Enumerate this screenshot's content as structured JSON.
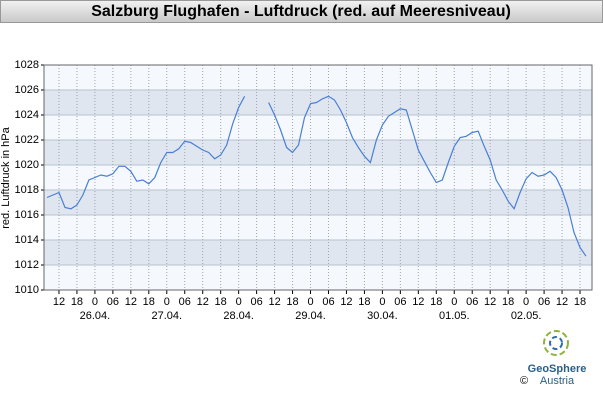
{
  "chart_data": {
    "type": "line",
    "title": "Salzburg Flughafen - Luftdruck (red. auf Meeresniveau)",
    "y_label": "red. Luftdruck in hPa",
    "logo_text": "GeoSphere",
    "logo_subtext": "Austria",
    "copyright": "©",
    "color": "#4a7fd6",
    "grid": true,
    "ylim": [
      1010,
      1028
    ],
    "yticks": [
      1010,
      1012,
      1014,
      1016,
      1018,
      1020,
      1022,
      1024,
      1026,
      1028
    ],
    "xlim": [
      -17,
      166
    ],
    "xticks": [
      {
        "value": -12,
        "label": "12"
      },
      {
        "value": -6,
        "label": "18"
      },
      {
        "value": 0,
        "label": "0"
      },
      {
        "value": 6,
        "label": "06"
      },
      {
        "value": 12,
        "label": "12"
      },
      {
        "value": 18,
        "label": "18"
      },
      {
        "value": 24,
        "label": "0"
      },
      {
        "value": 30,
        "label": "06"
      },
      {
        "value": 36,
        "label": "12"
      },
      {
        "value": 42,
        "label": "18"
      },
      {
        "value": 48,
        "label": "0"
      },
      {
        "value": 54,
        "label": "06"
      },
      {
        "value": 60,
        "label": "12"
      },
      {
        "value": 66,
        "label": "18"
      },
      {
        "value": 72,
        "label": "0"
      },
      {
        "value": 78,
        "label": "06"
      },
      {
        "value": 84,
        "label": "12"
      },
      {
        "value": 90,
        "label": "18"
      },
      {
        "value": 96,
        "label": "0"
      },
      {
        "value": 102,
        "label": "06"
      },
      {
        "value": 108,
        "label": "12"
      },
      {
        "value": 114,
        "label": "18"
      },
      {
        "value": 120,
        "label": "0"
      },
      {
        "value": 126,
        "label": "06"
      },
      {
        "value": 132,
        "label": "12"
      },
      {
        "value": 138,
        "label": "18"
      },
      {
        "value": 144,
        "label": "0"
      },
      {
        "value": 150,
        "label": "06"
      },
      {
        "value": 156,
        "label": "12"
      },
      {
        "value": 162,
        "label": "18"
      }
    ],
    "date_labels": [
      {
        "value": 0,
        "label": "26.04."
      },
      {
        "value": 24,
        "label": "27.04."
      },
      {
        "value": 48,
        "label": "28.04."
      },
      {
        "value": 72,
        "label": "29.04."
      },
      {
        "value": 96,
        "label": "30.04."
      },
      {
        "value": 120,
        "label": "01.05."
      },
      {
        "value": 144,
        "label": "02.05."
      }
    ],
    "x": [
      -16,
      -14,
      -12,
      -10,
      -8,
      -6,
      -4,
      -2,
      0,
      2,
      4,
      6,
      8,
      10,
      12,
      14,
      16,
      18,
      20,
      22,
      24,
      26,
      28,
      30,
      32,
      34,
      36,
      38,
      40,
      42,
      44,
      46,
      48,
      50,
      52,
      54,
      56,
      58,
      60,
      62,
      64,
      66,
      68,
      70,
      72,
      74,
      76,
      78,
      80,
      82,
      84,
      86,
      88,
      90,
      92,
      94,
      96,
      98,
      100,
      102,
      104,
      106,
      108,
      110,
      112,
      114,
      116,
      118,
      120,
      122,
      124,
      126,
      128,
      130,
      132,
      134,
      136,
      138,
      140,
      142,
      144,
      146,
      148,
      150,
      152,
      154,
      156,
      158,
      160,
      162,
      164
    ],
    "values": [
      1017.4,
      1017.6,
      1017.8,
      1016.6,
      1016.5,
      1016.8,
      1017.6,
      1018.8,
      1019.0,
      1019.2,
      1019.1,
      1019.3,
      1019.9,
      1019.9,
      1019.5,
      1018.7,
      1018.8,
      1018.5,
      1019.0,
      1020.2,
      1021.0,
      1021.0,
      1021.3,
      1021.9,
      1021.8,
      1021.5,
      1021.2,
      1021.0,
      1020.5,
      1020.8,
      1021.6,
      1023.3,
      1024.6,
      1025.5,
      null,
      null,
      null,
      1025.0,
      1024.0,
      1022.8,
      1021.4,
      1021.0,
      1021.6,
      1023.8,
      1024.9,
      1025.0,
      1025.3,
      1025.5,
      1025.2,
      1024.4,
      1023.4,
      1022.2,
      1021.4,
      1020.7,
      1020.2,
      1022.0,
      1023.2,
      1023.9,
      1024.2,
      1024.5,
      1024.4,
      1022.8,
      1021.2,
      1020.3,
      1019.4,
      1018.6,
      1018.8,
      1020.2,
      1021.5,
      1022.2,
      1022.3,
      1022.6,
      1022.7,
      1021.5,
      1020.4,
      1018.8,
      1018.0,
      1017.1,
      1016.5,
      1017.8,
      1018.9,
      1019.4,
      1019.1,
      1019.2,
      1019.5,
      1019.0,
      1018.0,
      1016.6,
      1014.6,
      1013.4,
      1012.7
    ]
  }
}
